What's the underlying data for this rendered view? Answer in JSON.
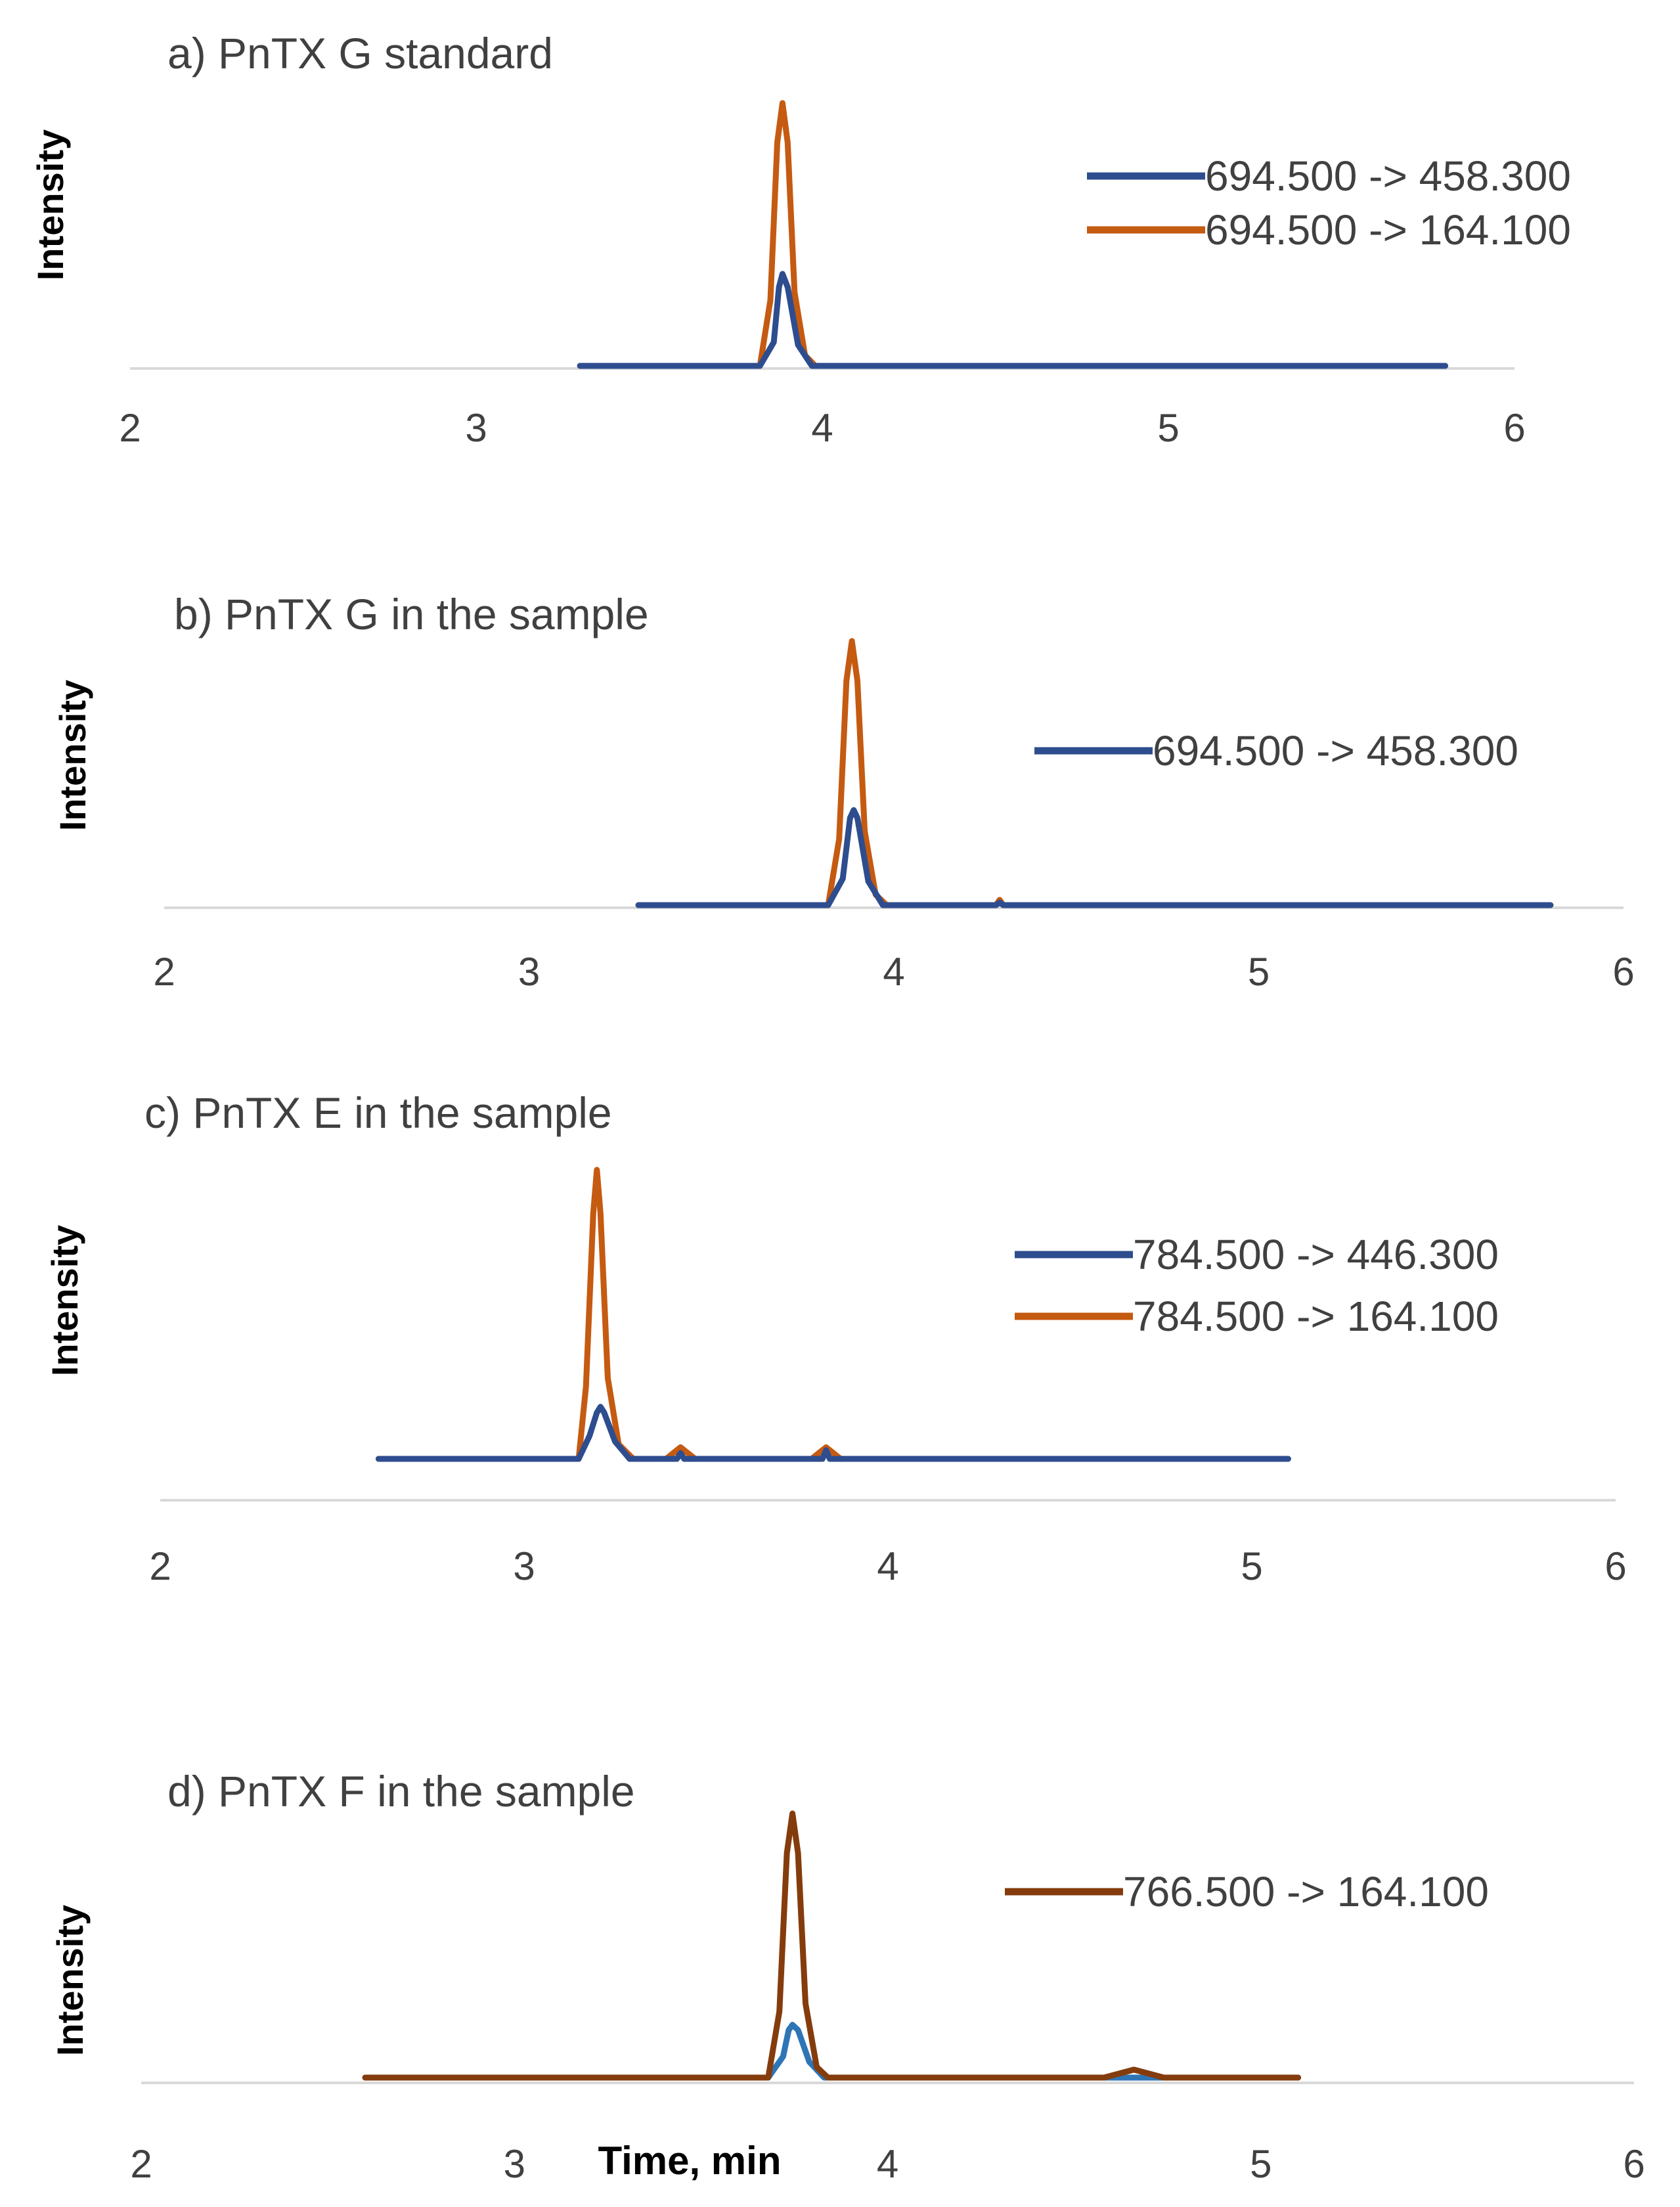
{
  "chart_data": [
    {
      "type": "line",
      "title": "a)  PnTX G standard",
      "ylabel": "Intensity",
      "xlabel": "",
      "xlim": [
        2,
        6
      ],
      "ylim": [
        0,
        1
      ],
      "xticks": [
        "2",
        "3",
        "4",
        "5",
        "6"
      ],
      "grid": false,
      "legend_position": "top-right",
      "series": [
        {
          "name": "694.500 -> 458.300",
          "color": "#2e4d8f",
          "x": [
            3.3,
            3.82,
            3.86,
            3.875,
            3.885,
            3.9,
            3.93,
            3.97,
            5.8
          ],
          "values": [
            0,
            0,
            0.09,
            0.3,
            0.35,
            0.3,
            0.08,
            0,
            0
          ]
        },
        {
          "name": "694.500 -> 164.100",
          "color": "#c55a11",
          "x": [
            3.3,
            3.82,
            3.85,
            3.87,
            3.885,
            3.9,
            3.92,
            3.95,
            3.98,
            5.8
          ],
          "values": [
            0,
            0,
            0.25,
            0.85,
            1.0,
            0.85,
            0.28,
            0.04,
            0,
            0
          ]
        }
      ]
    },
    {
      "type": "line",
      "title": "b)  PnTX  G in the sample",
      "ylabel": "Intensity",
      "xlabel": "",
      "xlim": [
        2,
        6
      ],
      "ylim": [
        0,
        1
      ],
      "xticks": [
        "2",
        "3",
        "4",
        "5",
        "6"
      ],
      "grid": false,
      "legend_position": "top-right",
      "series": [
        {
          "name": "694.500 -> 458.300",
          "color": "#2e4d8f",
          "x": [
            3.3,
            3.82,
            3.86,
            3.88,
            3.89,
            3.9,
            3.93,
            3.97,
            4.28,
            4.29,
            4.3,
            5.8
          ],
          "values": [
            0,
            0,
            0.1,
            0.33,
            0.36,
            0.33,
            0.09,
            0,
            0,
            0.01,
            0,
            0
          ]
        },
        {
          "name": "",
          "color": "#c55a11",
          "x": [
            3.3,
            3.82,
            3.85,
            3.87,
            3.885,
            3.9,
            3.92,
            3.95,
            3.98,
            4.28,
            4.29,
            4.3,
            5.8
          ],
          "values": [
            0,
            0,
            0.25,
            0.85,
            1.0,
            0.85,
            0.28,
            0.04,
            0,
            0,
            0.02,
            0,
            0
          ]
        }
      ]
    },
    {
      "type": "line",
      "title": "c)  PnTX  E in the sample",
      "ylabel": "Intensity",
      "xlabel": "",
      "xlim": [
        2,
        6
      ],
      "ylim": [
        0,
        1
      ],
      "xticks": [
        "2",
        "3",
        "4",
        "5",
        "6"
      ],
      "grid": false,
      "legend_position": "top-right",
      "series": [
        {
          "name": "784.500 -> 446.300",
          "color": "#2e4d8f",
          "x": [
            2.6,
            3.15,
            3.18,
            3.2,
            3.21,
            3.22,
            3.25,
            3.29,
            3.42,
            3.43,
            3.44,
            3.82,
            3.83,
            3.84,
            5.1
          ],
          "values": [
            0,
            0,
            0.08,
            0.16,
            0.18,
            0.16,
            0.06,
            0,
            0,
            0.02,
            0,
            0,
            0.03,
            0,
            0
          ]
        },
        {
          "name": "784.500 -> 164.100",
          "color": "#c55a11",
          "x": [
            2.6,
            3.15,
            3.17,
            3.19,
            3.2,
            3.21,
            3.23,
            3.26,
            3.3,
            3.39,
            3.43,
            3.47,
            3.79,
            3.83,
            3.87,
            5.1
          ],
          "values": [
            0,
            0,
            0.25,
            0.85,
            1.0,
            0.85,
            0.28,
            0.05,
            0,
            0,
            0.04,
            0,
            0,
            0.04,
            0,
            0
          ]
        }
      ]
    },
    {
      "type": "line",
      "title": "d)  PnTX  F in the sample",
      "ylabel": "Intensity",
      "xlabel": "Time, min",
      "xlim": [
        2,
        6
      ],
      "ylim": [
        0,
        1
      ],
      "xticks": [
        "2",
        "3",
        "4",
        "5",
        "6"
      ],
      "grid": false,
      "legend_position": "top-right",
      "series": [
        {
          "name": "766.500 -> 164.100",
          "color": "#843c0c",
          "x": [
            2.6,
            3.68,
            3.71,
            3.73,
            3.745,
            3.76,
            3.78,
            3.81,
            3.84,
            4.58,
            4.66,
            4.74,
            5.1
          ],
          "values": [
            0,
            0,
            0.25,
            0.85,
            1.0,
            0.85,
            0.28,
            0.04,
            0,
            0,
            0.03,
            0,
            0
          ]
        },
        {
          "name": "",
          "color": "#2e75b6",
          "x": [
            2.6,
            3.68,
            3.72,
            3.735,
            3.745,
            3.76,
            3.79,
            3.83,
            5.1
          ],
          "values": [
            0,
            0,
            0.08,
            0.18,
            0.2,
            0.18,
            0.06,
            0,
            0
          ]
        }
      ]
    }
  ]
}
